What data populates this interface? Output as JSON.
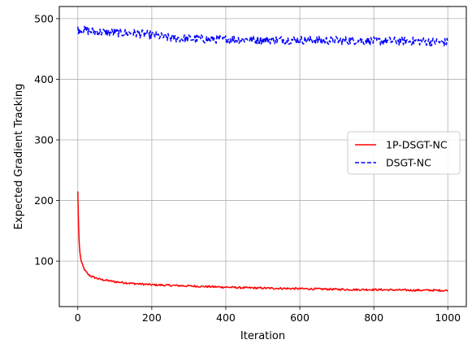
{
  "chart_data": {
    "type": "line",
    "title": "",
    "xlabel": "Iteration",
    "ylabel": "Expected Gradient Tracking",
    "xlim": [
      -50,
      1050
    ],
    "ylim": [
      25,
      520
    ],
    "x_ticks": [
      0,
      200,
      400,
      600,
      800,
      1000
    ],
    "y_ticks": [
      100,
      200,
      300,
      400,
      500
    ],
    "grid": true,
    "legend_position": "center-right",
    "series": [
      {
        "name": "1P-DSGT-NC",
        "color": "#ff0000",
        "style": "solid",
        "x": [
          0,
          2,
          4,
          6,
          8,
          10,
          15,
          20,
          25,
          30,
          40,
          50,
          60,
          80,
          100,
          150,
          200,
          250,
          300,
          350,
          400,
          450,
          500,
          550,
          600,
          650,
          700,
          750,
          800,
          850,
          900,
          950,
          1000
        ],
        "y": [
          215,
          160,
          128,
          112,
          105,
          98,
          90,
          84,
          80,
          77,
          74,
          72,
          70,
          68,
          66,
          63,
          61,
          60,
          59,
          58,
          57,
          56,
          55.5,
          55,
          54.5,
          54,
          53.5,
          53,
          53,
          52.5,
          52,
          52,
          51.5
        ]
      },
      {
        "name": "DSGT-NC",
        "color": "#0000ff",
        "style": "dashed",
        "x": [
          0,
          50,
          100,
          150,
          200,
          250,
          300,
          350,
          400,
          450,
          500,
          550,
          600,
          650,
          700,
          750,
          800,
          850,
          900,
          950,
          1000
        ],
        "y": [
          482,
          478,
          477,
          476,
          473,
          468,
          467,
          466,
          466,
          466,
          465,
          465,
          465,
          464,
          464,
          464,
          463,
          463,
          463,
          462,
          461
        ]
      }
    ]
  }
}
